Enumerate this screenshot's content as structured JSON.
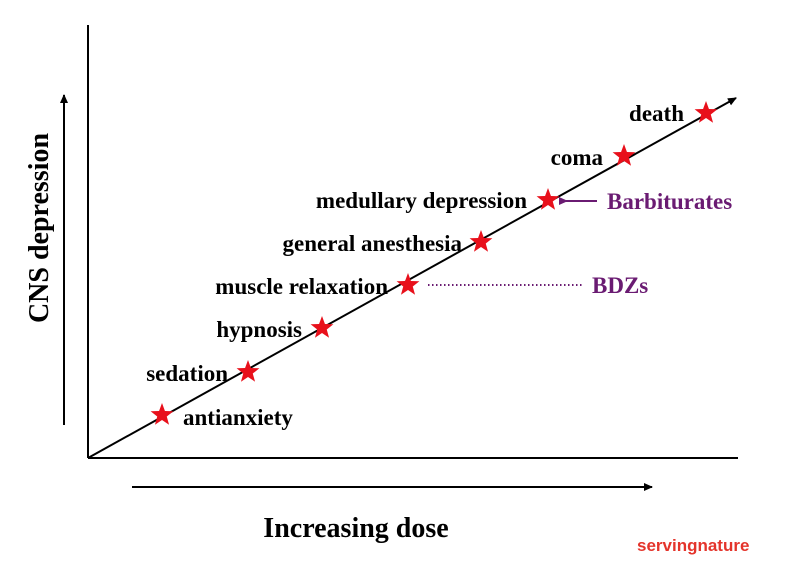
{
  "x_axis_label": "Increasing dose",
  "y_axis_label": "CNS depression",
  "stages": [
    {
      "label": "antianxiety"
    },
    {
      "label": "sedation"
    },
    {
      "label": "hypnosis"
    },
    {
      "label": "muscle relaxation"
    },
    {
      "label": "general anesthesia"
    },
    {
      "label": "medullary depression"
    },
    {
      "label": "coma"
    },
    {
      "label": "death"
    }
  ],
  "drug_markers": [
    {
      "label": "BDZs",
      "points_to": "muscle relaxation",
      "line_style": "dotted"
    },
    {
      "label": "Barbiturates",
      "points_to": "medullary depression",
      "line_style": "arrow"
    }
  ],
  "watermark": "servingnature",
  "colors": {
    "star": "#e8101b",
    "drug_label": "#6a1b72",
    "watermark": "#e4342b",
    "axis": "#000000"
  }
}
